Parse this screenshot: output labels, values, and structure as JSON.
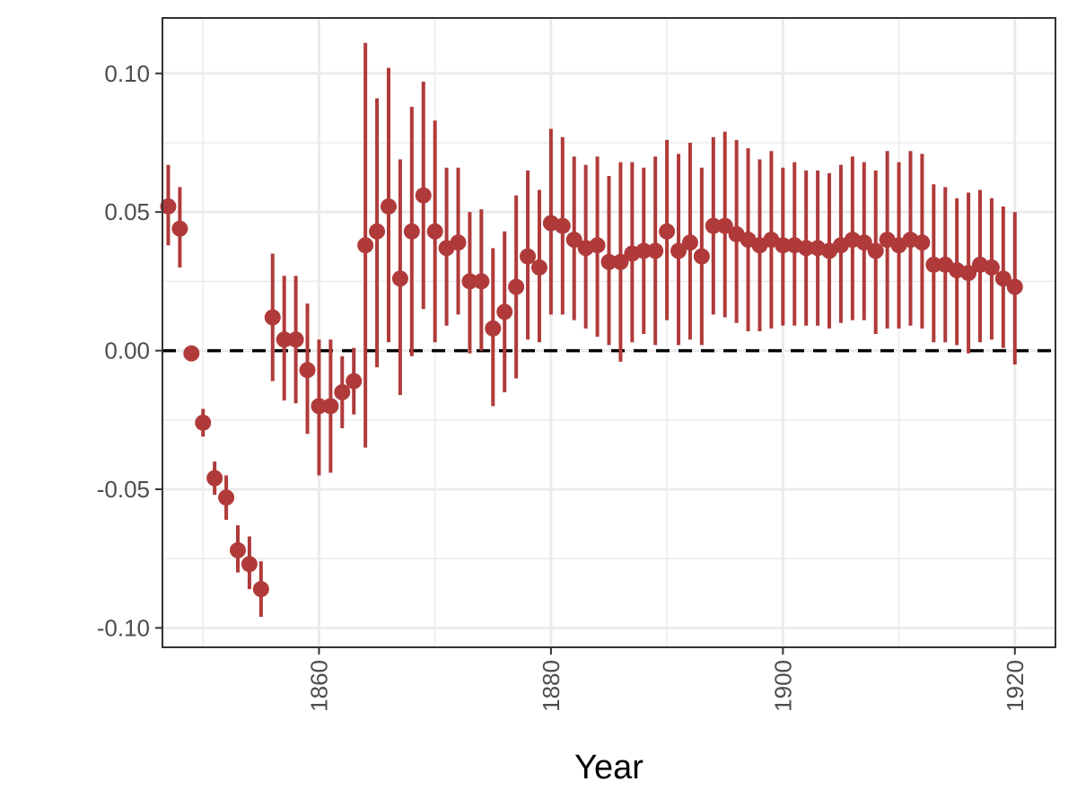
{
  "chart_data": {
    "type": "scatter",
    "xlabel": "Year",
    "ylabel": "",
    "title": "",
    "xlim": [
      1846.5,
      1923.5
    ],
    "ylim": [
      -0.107,
      0.12
    ],
    "x_ticks": [
      1860,
      1880,
      1900,
      1920
    ],
    "x_tick_labels": [
      "1860",
      "1880",
      "1900",
      "1920"
    ],
    "y_ticks": [
      -0.1,
      -0.05,
      0.0,
      0.05,
      0.1
    ],
    "y_tick_labels": [
      "-0.10",
      "-0.05",
      "0.00",
      "0.05",
      "0.10"
    ],
    "grid": true,
    "reference_line_y": 0,
    "colors": {
      "point": "#b03a3a",
      "errorbar": "#b03a3a",
      "reference_line": "#000000",
      "grid": "#ebebeb",
      "panel_border": "#333333"
    },
    "points": [
      {
        "x": 1847,
        "y": 0.052,
        "lo": 0.038,
        "hi": 0.067
      },
      {
        "x": 1848,
        "y": 0.044,
        "lo": 0.03,
        "hi": 0.059
      },
      {
        "x": 1849,
        "y": -0.001,
        "lo": -0.003,
        "hi": 0.001
      },
      {
        "x": 1850,
        "y": -0.026,
        "lo": -0.031,
        "hi": -0.021
      },
      {
        "x": 1851,
        "y": -0.046,
        "lo": -0.052,
        "hi": -0.04
      },
      {
        "x": 1852,
        "y": -0.053,
        "lo": -0.061,
        "hi": -0.045
      },
      {
        "x": 1853,
        "y": -0.072,
        "lo": -0.08,
        "hi": -0.063
      },
      {
        "x": 1854,
        "y": -0.077,
        "lo": -0.086,
        "hi": -0.067
      },
      {
        "x": 1855,
        "y": -0.086,
        "lo": -0.096,
        "hi": -0.076
      },
      {
        "x": 1856,
        "y": 0.012,
        "lo": -0.011,
        "hi": 0.035
      },
      {
        "x": 1857,
        "y": 0.004,
        "lo": -0.018,
        "hi": 0.027
      },
      {
        "x": 1858,
        "y": 0.004,
        "lo": -0.019,
        "hi": 0.027
      },
      {
        "x": 1859,
        "y": -0.007,
        "lo": -0.03,
        "hi": 0.017
      },
      {
        "x": 1860,
        "y": -0.02,
        "lo": -0.045,
        "hi": 0.004
      },
      {
        "x": 1861,
        "y": -0.02,
        "lo": -0.044,
        "hi": 0.004
      },
      {
        "x": 1862,
        "y": -0.015,
        "lo": -0.028,
        "hi": -0.002
      },
      {
        "x": 1863,
        "y": -0.011,
        "lo": -0.023,
        "hi": 0.001
      },
      {
        "x": 1864,
        "y": 0.038,
        "lo": -0.035,
        "hi": 0.111
      },
      {
        "x": 1865,
        "y": 0.043,
        "lo": -0.006,
        "hi": 0.091
      },
      {
        "x": 1866,
        "y": 0.052,
        "lo": 0.003,
        "hi": 0.102
      },
      {
        "x": 1867,
        "y": 0.026,
        "lo": -0.016,
        "hi": 0.069
      },
      {
        "x": 1868,
        "y": 0.043,
        "lo": -0.002,
        "hi": 0.088
      },
      {
        "x": 1869,
        "y": 0.056,
        "lo": 0.015,
        "hi": 0.097
      },
      {
        "x": 1870,
        "y": 0.043,
        "lo": 0.003,
        "hi": 0.083
      },
      {
        "x": 1871,
        "y": 0.037,
        "lo": 0.009,
        "hi": 0.066
      },
      {
        "x": 1872,
        "y": 0.039,
        "lo": 0.013,
        "hi": 0.066
      },
      {
        "x": 1873,
        "y": 0.025,
        "lo": -0.001,
        "hi": 0.05
      },
      {
        "x": 1874,
        "y": 0.025,
        "lo": 0.0,
        "hi": 0.051
      },
      {
        "x": 1875,
        "y": 0.008,
        "lo": -0.02,
        "hi": 0.037
      },
      {
        "x": 1876,
        "y": 0.014,
        "lo": -0.015,
        "hi": 0.043
      },
      {
        "x": 1877,
        "y": 0.023,
        "lo": -0.01,
        "hi": 0.056
      },
      {
        "x": 1878,
        "y": 0.034,
        "lo": 0.004,
        "hi": 0.065
      },
      {
        "x": 1879,
        "y": 0.03,
        "lo": 0.003,
        "hi": 0.058
      },
      {
        "x": 1880,
        "y": 0.046,
        "lo": 0.013,
        "hi": 0.08
      },
      {
        "x": 1881,
        "y": 0.045,
        "lo": 0.013,
        "hi": 0.077
      },
      {
        "x": 1882,
        "y": 0.04,
        "lo": 0.011,
        "hi": 0.07
      },
      {
        "x": 1883,
        "y": 0.037,
        "lo": 0.008,
        "hi": 0.067
      },
      {
        "x": 1884,
        "y": 0.038,
        "lo": 0.005,
        "hi": 0.07
      },
      {
        "x": 1885,
        "y": 0.032,
        "lo": 0.002,
        "hi": 0.063
      },
      {
        "x": 1886,
        "y": 0.032,
        "lo": -0.004,
        "hi": 0.068
      },
      {
        "x": 1887,
        "y": 0.035,
        "lo": 0.003,
        "hi": 0.068
      },
      {
        "x": 1888,
        "y": 0.036,
        "lo": 0.006,
        "hi": 0.066
      },
      {
        "x": 1889,
        "y": 0.036,
        "lo": 0.002,
        "hi": 0.07
      },
      {
        "x": 1890,
        "y": 0.043,
        "lo": 0.011,
        "hi": 0.076
      },
      {
        "x": 1891,
        "y": 0.036,
        "lo": 0.002,
        "hi": 0.071
      },
      {
        "x": 1892,
        "y": 0.039,
        "lo": 0.004,
        "hi": 0.075
      },
      {
        "x": 1893,
        "y": 0.034,
        "lo": 0.002,
        "hi": 0.066
      },
      {
        "x": 1894,
        "y": 0.045,
        "lo": 0.013,
        "hi": 0.077
      },
      {
        "x": 1895,
        "y": 0.045,
        "lo": 0.012,
        "hi": 0.079
      },
      {
        "x": 1896,
        "y": 0.042,
        "lo": 0.01,
        "hi": 0.076
      },
      {
        "x": 1897,
        "y": 0.04,
        "lo": 0.007,
        "hi": 0.073
      },
      {
        "x": 1898,
        "y": 0.038,
        "lo": 0.007,
        "hi": 0.069
      },
      {
        "x": 1899,
        "y": 0.04,
        "lo": 0.008,
        "hi": 0.072
      },
      {
        "x": 1900,
        "y": 0.038,
        "lo": 0.009,
        "hi": 0.066
      },
      {
        "x": 1901,
        "y": 0.038,
        "lo": 0.009,
        "hi": 0.068
      },
      {
        "x": 1902,
        "y": 0.037,
        "lo": 0.009,
        "hi": 0.065
      },
      {
        "x": 1903,
        "y": 0.037,
        "lo": 0.009,
        "hi": 0.065
      },
      {
        "x": 1904,
        "y": 0.036,
        "lo": 0.008,
        "hi": 0.064
      },
      {
        "x": 1905,
        "y": 0.038,
        "lo": 0.01,
        "hi": 0.067
      },
      {
        "x": 1906,
        "y": 0.04,
        "lo": 0.011,
        "hi": 0.07
      },
      {
        "x": 1907,
        "y": 0.039,
        "lo": 0.011,
        "hi": 0.068
      },
      {
        "x": 1908,
        "y": 0.036,
        "lo": 0.006,
        "hi": 0.065
      },
      {
        "x": 1909,
        "y": 0.04,
        "lo": 0.008,
        "hi": 0.072
      },
      {
        "x": 1910,
        "y": 0.038,
        "lo": 0.008,
        "hi": 0.068
      },
      {
        "x": 1911,
        "y": 0.04,
        "lo": 0.009,
        "hi": 0.072
      },
      {
        "x": 1912,
        "y": 0.039,
        "lo": 0.008,
        "hi": 0.071
      },
      {
        "x": 1913,
        "y": 0.031,
        "lo": 0.003,
        "hi": 0.06
      },
      {
        "x": 1914,
        "y": 0.031,
        "lo": 0.003,
        "hi": 0.059
      },
      {
        "x": 1915,
        "y": 0.029,
        "lo": 0.002,
        "hi": 0.055
      },
      {
        "x": 1916,
        "y": 0.028,
        "lo": -0.001,
        "hi": 0.057
      },
      {
        "x": 1917,
        "y": 0.031,
        "lo": 0.003,
        "hi": 0.058
      },
      {
        "x": 1918,
        "y": 0.03,
        "lo": 0.004,
        "hi": 0.055
      },
      {
        "x": 1919,
        "y": 0.026,
        "lo": 0.001,
        "hi": 0.052
      },
      {
        "x": 1920,
        "y": 0.023,
        "lo": -0.005,
        "hi": 0.05
      }
    ]
  }
}
